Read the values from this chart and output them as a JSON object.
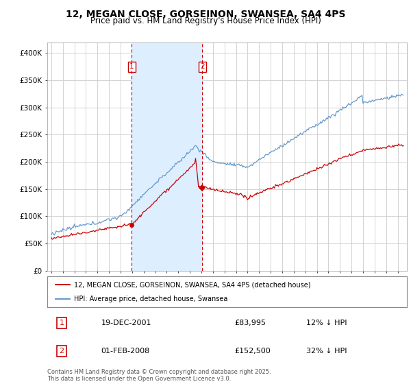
{
  "title": "12, MEGAN CLOSE, GORSEINON, SWANSEA, SA4 4PS",
  "subtitle": "Price paid vs. HM Land Registry's House Price Index (HPI)",
  "title_fontsize": 10,
  "subtitle_fontsize": 8.5,
  "ylim": [
    0,
    420000
  ],
  "yticks": [
    0,
    50000,
    100000,
    150000,
    200000,
    250000,
    300000,
    350000,
    400000
  ],
  "ytick_labels": [
    "£0",
    "£50K",
    "£100K",
    "£150K",
    "£200K",
    "£250K",
    "£300K",
    "£350K",
    "£400K"
  ],
  "background_color": "#ffffff",
  "grid_color": "#cccccc",
  "hpi_color": "#6699cc",
  "price_color": "#cc0000",
  "purchase1_date": "19-DEC-2001",
  "purchase1_price": 83995,
  "purchase1_price_str": "£83,995",
  "purchase1_label": "12% ↓ HPI",
  "purchase2_date": "01-FEB-2008",
  "purchase2_price": 152500,
  "purchase2_price_str": "£152,500",
  "purchase2_label": "32% ↓ HPI",
  "legend_label1": "12, MEGAN CLOSE, GORSEINON, SWANSEA, SA4 4PS (detached house)",
  "legend_label2": "HPI: Average price, detached house, Swansea",
  "footer": "Contains HM Land Registry data © Crown copyright and database right 2025.\nThis data is licensed under the Open Government Licence v3.0.",
  "purchase_box_color": "#cc0000",
  "purchase_region_color": "#ddeeff",
  "p1_year": 2001.97,
  "p2_year": 2008.08,
  "p1_price": 83995,
  "p2_price": 152500
}
